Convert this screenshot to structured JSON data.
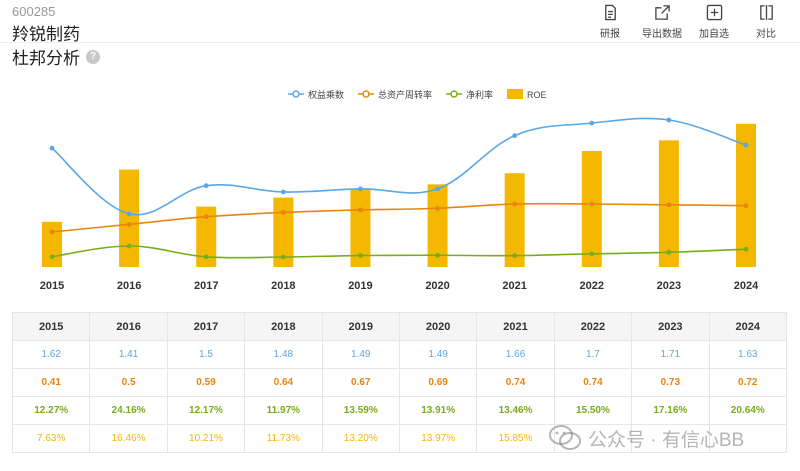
{
  "stock": {
    "code": "600285",
    "name": "羚锐制药"
  },
  "section": {
    "title": "杜邦分析",
    "help_icon": "?"
  },
  "toolbar": [
    {
      "label": "研报",
      "icon": "report-icon"
    },
    {
      "label": "导出数据",
      "icon": "export-icon"
    },
    {
      "label": "加自选",
      "icon": "add-watchlist-icon"
    },
    {
      "label": "对比",
      "icon": "compare-icon"
    }
  ],
  "colors": {
    "equity": "#5aa7e6",
    "turnover": "#e8850c",
    "margin": "#7aac1a",
    "roe": "#f5b800"
  },
  "chart_data": {
    "type": "bar+line",
    "categories": [
      "2015",
      "2016",
      "2017",
      "2018",
      "2019",
      "2020",
      "2021",
      "2022",
      "2023",
      "2024"
    ],
    "legend_position": "top-center",
    "series": [
      {
        "name": "权益乘数",
        "type": "line",
        "values": [
          1.62,
          1.41,
          1.5,
          1.48,
          1.49,
          1.49,
          1.66,
          1.7,
          1.71,
          1.63
        ]
      },
      {
        "name": "总资产周转率",
        "type": "line",
        "values": [
          0.41,
          0.5,
          0.59,
          0.64,
          0.67,
          0.69,
          0.74,
          0.74,
          0.73,
          0.72
        ]
      },
      {
        "name": "净利率",
        "type": "line",
        "values": [
          "12.27%",
          "24.16%",
          "12.17%",
          "11.97%",
          "13.59%",
          "13.91%",
          "13.46%",
          "15.50%",
          "17.16%",
          "20.64%"
        ]
      },
      {
        "name": "ROE",
        "type": "bar",
        "values": [
          "7.63%",
          "16.46%",
          "10.21%",
          "11.73%",
          "13.20%",
          "13.97%",
          "15.85%",
          "",
          "",
          ""
        ]
      }
    ]
  },
  "watermark": {
    "text": "公众号 · 有信心BB"
  }
}
